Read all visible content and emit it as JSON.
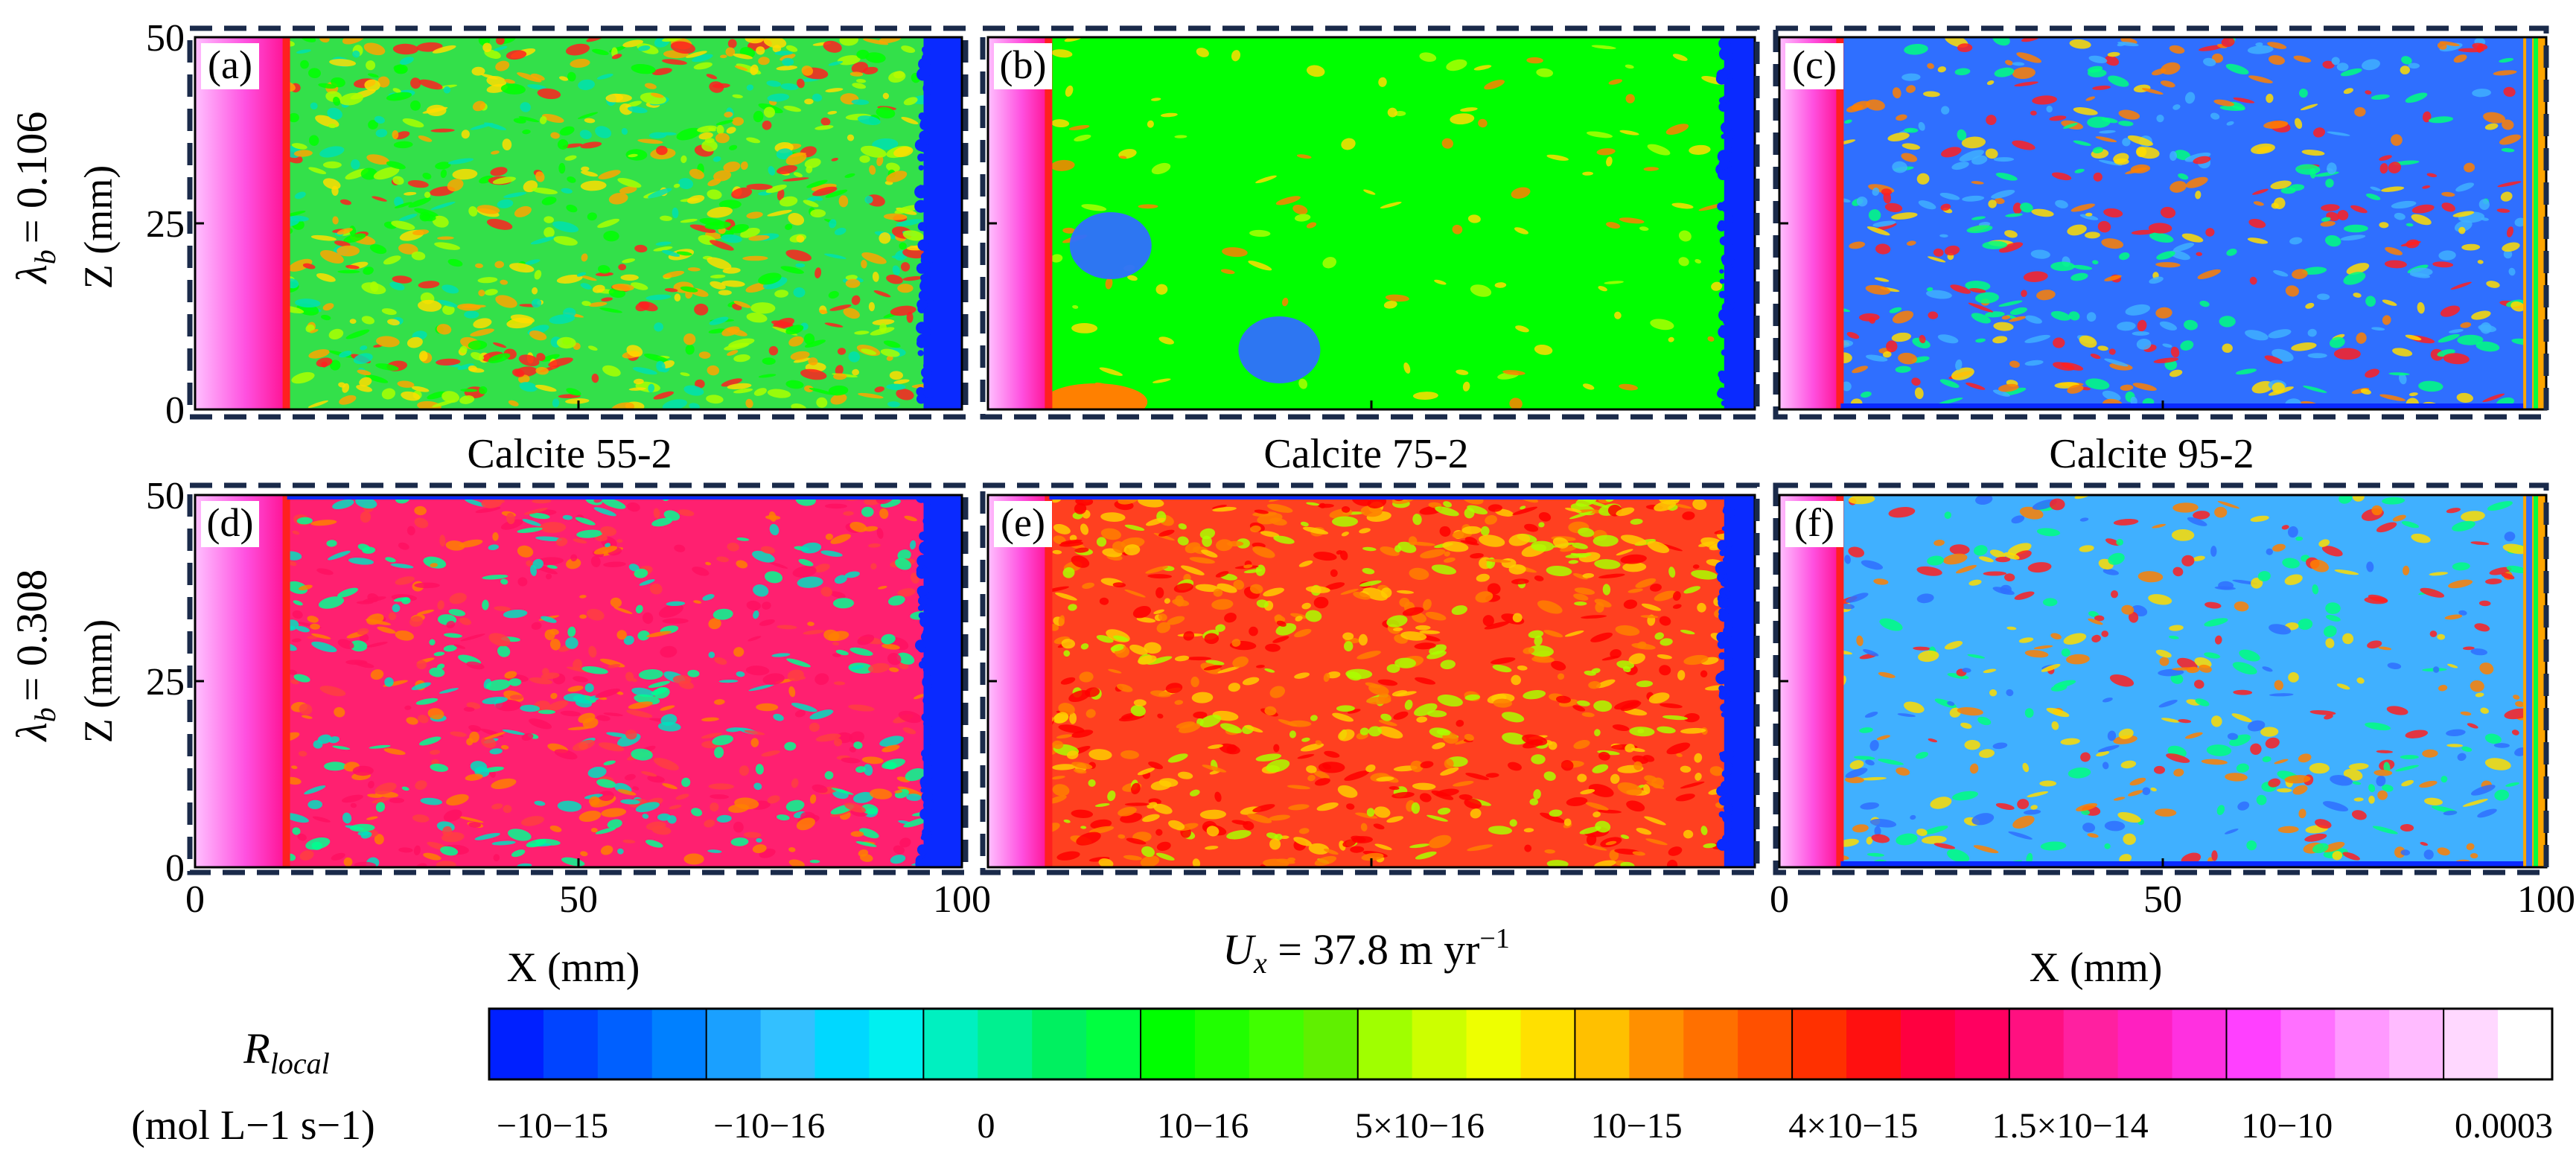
{
  "chart_data": {
    "type": "heatmap",
    "title": "",
    "velocity_label": {
      "main": "U",
      "sub": "x",
      "text": " = 37.8 m yr",
      "sup": "−1"
    },
    "rows": [
      {
        "label_main": "λ",
        "label_sub": "b",
        "label_value": "= 0.106",
        "ylabel": "Z (mm)"
      },
      {
        "label_main": "λ",
        "label_sub": "b",
        "label_value": "= 0.308",
        "ylabel": "Z (mm)"
      }
    ],
    "columns": [
      {
        "sample": "Calcite 55-2",
        "xlabel": "X (mm)"
      },
      {
        "sample": "Calcite 75-2",
        "xlabel": ""
      },
      {
        "sample": "Calcite 95-2",
        "xlabel": "X (mm)"
      }
    ],
    "xlim": [
      0,
      100
    ],
    "ylim": [
      0,
      50
    ],
    "x_ticks": [
      "0",
      "50",
      "100"
    ],
    "y_ticks": [
      "0",
      "25",
      "50"
    ],
    "panels": [
      {
        "id": "a",
        "tag": "(a)",
        "inlet_end": 12,
        "outlet_start": 95,
        "bg": "#33e04a",
        "palette": [
          "#00ff00",
          "#aaff00",
          "#ffdd00",
          "#ffa500",
          "#ff2020",
          "#00e0b0"
        ],
        "density": 0.55
      },
      {
        "id": "b",
        "tag": "(b)",
        "inlet_end": 8,
        "outlet_start": 96,
        "bg": "#00ff00",
        "palette": [
          "#aaff00",
          "#ffdd00",
          "#ff8000"
        ],
        "density": 0.08
      },
      {
        "id": "c",
        "tag": "(c)",
        "inlet_end": 8,
        "outlet_start": 97,
        "bg": "#2f6fff",
        "palette": [
          "#40b0ff",
          "#00ff80",
          "#ffdd00",
          "#ff8000",
          "#ff2020"
        ],
        "density": 0.35
      },
      {
        "id": "d",
        "tag": "(d)",
        "inlet_end": 12,
        "outlet_start": 95,
        "bg": "#ff2070",
        "palette": [
          "#00ff90",
          "#00e0c0",
          "#ff4040",
          "#ff8000",
          "#ff1060"
        ],
        "density": 0.45
      },
      {
        "id": "e",
        "tag": "(e)",
        "inlet_end": 8,
        "outlet_start": 96,
        "bg": "#ff4020",
        "palette": [
          "#ff8000",
          "#ffcc00",
          "#aaff00",
          "#ff0000"
        ],
        "density": 0.55
      },
      {
        "id": "f",
        "tag": "(f)",
        "inlet_end": 8,
        "outlet_start": 97,
        "bg": "#40b0ff",
        "palette": [
          "#2f6fff",
          "#00ff80",
          "#ffdd00",
          "#ff8000",
          "#ff2020"
        ],
        "density": 0.3
      }
    ],
    "colorbar": {
      "label_main": "R",
      "label_sub": "local",
      "units": "(mol L−1 s−1)",
      "colors": [
        "#0020ff",
        "#0044ff",
        "#0060ff",
        "#0080ff",
        "#1aa0ff",
        "#33c0ff",
        "#00d8ff",
        "#00f0f0",
        "#00f0c0",
        "#00f090",
        "#00f060",
        "#00ff40",
        "#00ff00",
        "#20ff00",
        "#40ff00",
        "#60f000",
        "#a0ff00",
        "#ccff00",
        "#eeff00",
        "#ffe000",
        "#ffc000",
        "#ff9000",
        "#ff7000",
        "#ff5000",
        "#ff3000",
        "#ff1010",
        "#ff0040",
        "#ff0060",
        "#ff1080",
        "#ff20a0",
        "#ff20c0",
        "#ff30e0",
        "#ff40ff",
        "#ff70ff",
        "#ff99ff",
        "#ffbbff",
        "#ffd8ff",
        "#ffffff"
      ],
      "tick_labels": [
        "−10−15",
        "−10−16",
        "0",
        "10−16",
        "5×10−16",
        "10−15",
        "4×10−15",
        "1.5×10−14",
        "10−10",
        "0.0003"
      ]
    }
  }
}
